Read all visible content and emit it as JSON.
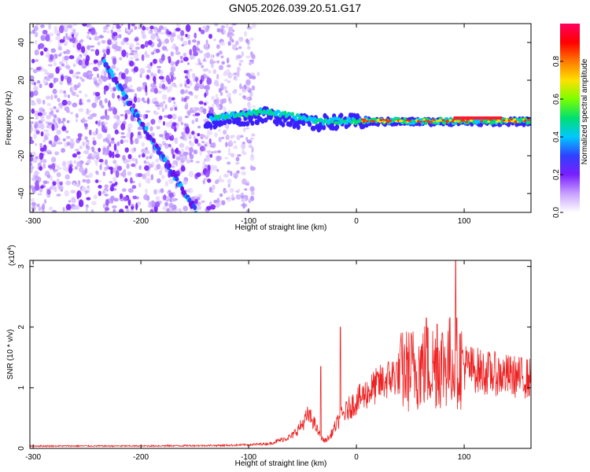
{
  "title": "GN05.2026.039.20.51.G17",
  "chart_data": [
    {
      "type": "heatmap",
      "xlabel": "Height of straight line (km)",
      "ylabel": "Frequency (Hz)",
      "xlim": [
        -303,
        162
      ],
      "ylim": [
        -50,
        50
      ],
      "x_ticks": [
        -300,
        -200,
        -100,
        0,
        100
      ],
      "y_ticks": [
        -40,
        -20,
        0,
        20,
        40
      ],
      "colorbar": {
        "label": "Normalized spectral amplitude",
        "range": [
          0,
          1
        ],
        "ticks": [
          "0.0",
          "0.2",
          "0.4",
          "0.6",
          "0.8"
        ],
        "colors": [
          "#ffffff",
          "#c8a0ff",
          "#7a1fff",
          "#3040ff",
          "#00c8ff",
          "#00e070",
          "#7aff00",
          "#ffe000",
          "#ff7a00",
          "#ff0000",
          "#ff0060"
        ]
      },
      "features": [
        {
          "name": "dominant tone",
          "x_range": [
            -140,
            162
          ],
          "freq_start": -2,
          "freq_end": -3
        },
        {
          "name": "diagonal track",
          "x_range": [
            -235,
            -148
          ],
          "freq_start": 30,
          "freq_end": -50
        }
      ]
    },
    {
      "type": "line",
      "xlabel": "Height of straight line (km)",
      "ylabel": "SNR (10 * v/v)",
      "y_multiplier": "(x10",
      "y_multiplier_exp": "4",
      "y_multiplier_close": ")",
      "xlim": [
        -303,
        162
      ],
      "ylim": [
        0,
        3.1
      ],
      "x_ticks": [
        -300,
        -200,
        -100,
        0,
        100
      ],
      "y_ticks": [
        0,
        1,
        2,
        3
      ],
      "color": "#ee2222",
      "envelope": [
        [
          -303,
          0.04
        ],
        [
          -200,
          0.04
        ],
        [
          -120,
          0.05
        ],
        [
          -100,
          0.06
        ],
        [
          -80,
          0.08
        ],
        [
          -60,
          0.2
        ],
        [
          -50,
          0.4
        ],
        [
          -45,
          0.55
        ],
        [
          -40,
          0.45
        ],
        [
          -35,
          0.25
        ],
        [
          -30,
          0.12
        ],
        [
          -25,
          0.18
        ],
        [
          -20,
          0.35
        ],
        [
          -15,
          0.5
        ],
        [
          -5,
          0.7
        ],
        [
          5,
          0.85
        ],
        [
          20,
          1.05
        ],
        [
          40,
          1.25
        ],
        [
          60,
          1.35
        ],
        [
          80,
          1.4
        ],
        [
          90,
          1.45
        ],
        [
          100,
          1.35
        ],
        [
          120,
          1.25
        ],
        [
          140,
          1.2
        ],
        [
          162,
          1.15
        ]
      ],
      "spikes": [
        [
          -15,
          2.0
        ],
        [
          -33,
          1.35
        ],
        [
          92,
          3.1
        ],
        [
          65,
          2.15
        ],
        [
          75,
          2.05
        ]
      ]
    }
  ]
}
